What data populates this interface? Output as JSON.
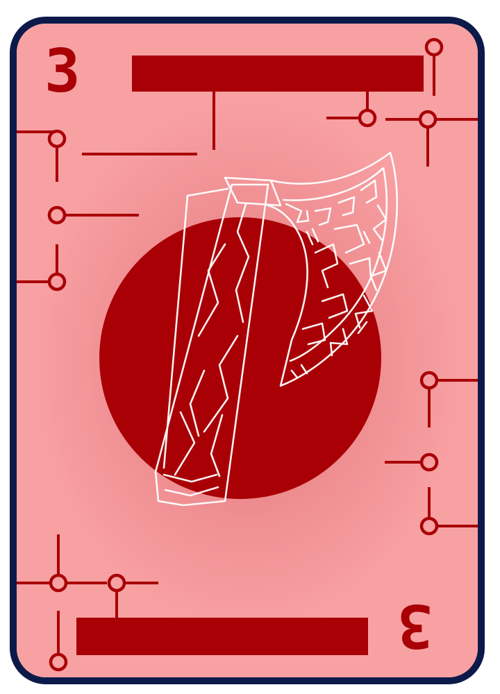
{
  "card": {
    "rank_top": "3",
    "rank_bottom": "3",
    "suit_icon": "axe-icon",
    "colors": {
      "accent": "#a90006",
      "background": "#f8a1a3",
      "border": "#0c1a4a",
      "sketch": "#ffffff"
    }
  }
}
